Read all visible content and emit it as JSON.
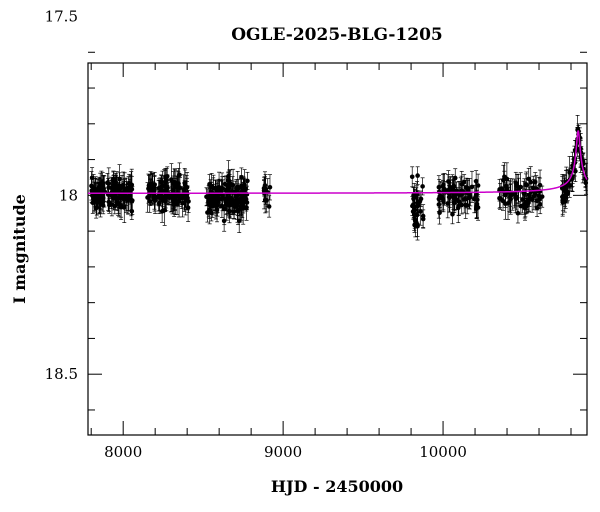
{
  "chart_data": {
    "type": "scatter",
    "title": "OGLE-2025-BLG-1205",
    "xlabel": "HJD - 2450000",
    "ylabel": "I magnitude",
    "xlim": [
      7780,
      10900
    ],
    "ylim": [
      18.67,
      17.63
    ],
    "y_inverted": true,
    "x_ticks": [
      8000,
      9000,
      10000
    ],
    "y_ticks": [
      17.5,
      18,
      18.5
    ],
    "x_tick_labels": [
      "8000",
      "9000",
      "10000"
    ],
    "y_tick_labels": [
      "17.5",
      "18",
      "18.5"
    ],
    "colors": {
      "points": "#000000",
      "model": "#cc00cc",
      "axes": "#000000"
    },
    "seasons": [
      {
        "start": 7800,
        "end": 8060,
        "base": 17.995,
        "scatter": 0.03,
        "n": 110
      },
      {
        "start": 8150,
        "end": 8410,
        "base": 17.995,
        "scatter": 0.03,
        "n": 110
      },
      {
        "start": 8520,
        "end": 8780,
        "base": 18.0,
        "scatter": 0.035,
        "n": 130
      },
      {
        "start": 8880,
        "end": 8920,
        "base": 18.0,
        "scatter": 0.035,
        "n": 12
      },
      {
        "start": 9800,
        "end": 9880,
        "base": 18.02,
        "scatter": 0.05,
        "n": 30
      },
      {
        "start": 9960,
        "end": 10220,
        "base": 18.0,
        "scatter": 0.03,
        "n": 70
      },
      {
        "start": 10350,
        "end": 10620,
        "base": 18.0,
        "scatter": 0.03,
        "n": 70
      },
      {
        "start": 10740,
        "end": 10900,
        "base": 17.995,
        "scatter": 0.025,
        "n": 60
      }
    ],
    "model": {
      "baseline": 17.995,
      "peak_time": 10845,
      "peak_mag": 17.82,
      "width": 22
    }
  }
}
